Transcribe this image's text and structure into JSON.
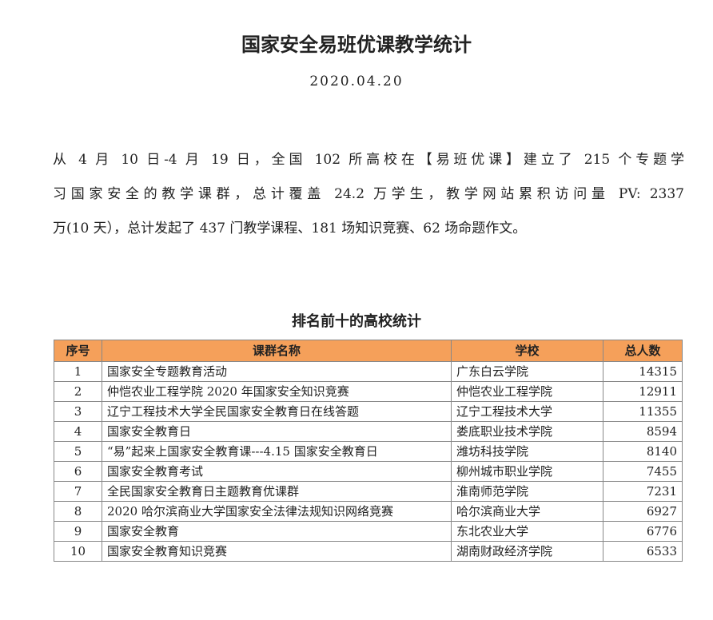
{
  "title": "国家安全易班优课教学统计",
  "date": "2020.04.20",
  "paragraph_lines": [
    "从 4 月 10 日-4 月 19 日，全国 102 所高校在【易班优课】建立了 215 个专题学",
    "习国家安全的教学课群，总计覆盖 24.2 万学生，教学网站累积访问量 PV: 2337",
    "万(10 天），总计发起了 437 门教学课程、181 场知识竞赛、62 场命题作文。"
  ],
  "table_title": "排名前十的高校统计",
  "table": {
    "header_color": "#F5A05A",
    "columns": [
      "序号",
      "课群名称",
      "学校",
      "总人数"
    ],
    "rows": [
      [
        "1",
        "国家安全专题教育活动",
        "广东白云学院",
        "14315"
      ],
      [
        "2",
        "仲恺农业工程学院 2020 年国家安全知识竞赛",
        "仲恺农业工程学院",
        "12911"
      ],
      [
        "3",
        "辽宁工程技术大学全民国家安全教育日在线答题",
        "辽宁工程技术大学",
        "11355"
      ],
      [
        "4",
        "国家安全教育日",
        "娄底职业技术学院",
        "8594"
      ],
      [
        "5",
        "“易”起来上国家安全教育课---4.15 国家安全教育日",
        "潍坊科技学院",
        "8140"
      ],
      [
        "6",
        "国家安全教育考试",
        "柳州城市职业学院",
        "7455"
      ],
      [
        "7",
        "全民国家安全教育日主题教育优课群",
        "淮南师范学院",
        "7231"
      ],
      [
        "8",
        "2020 哈尔滨商业大学国家安全法律法规知识网络竞赛",
        "哈尔滨商业大学",
        "6927"
      ],
      [
        "9",
        "国家安全教育",
        "东北农业大学",
        "6776"
      ],
      [
        "10",
        "国家安全教育知识竞赛",
        "湖南财政经济学院",
        "6533"
      ]
    ]
  }
}
